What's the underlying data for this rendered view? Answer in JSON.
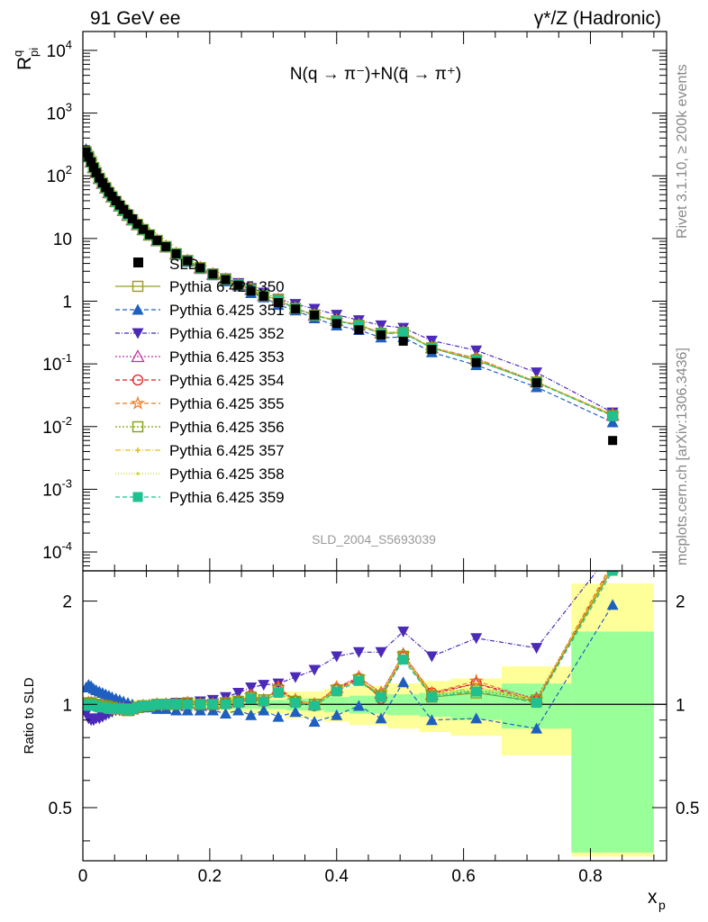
{
  "header": {
    "left": "91 GeV ee",
    "right": "γ*/Z (Hadronic)",
    "side_top": "Rivet 3.1.10, ≥ 200k events",
    "side_bottom": "mcplots.cern.ch [arXiv:1306.3436]",
    "analysis": "SLD_2004_S5693039"
  },
  "chart_data": [
    {
      "type": "scatter",
      "title": "N(q → π⁻)+N(q̄ → π⁺)",
      "ylabel_main": "R",
      "ylabel_sup": "q",
      "ylabel_sub": "pi",
      "xlim": [
        0,
        0.92
      ],
      "ylim": [
        5e-05,
        20000
      ],
      "log_y": true,
      "ytick_labels": [
        "10^-4",
        "10^-3",
        "10^-2",
        "10^-1",
        "1",
        "10",
        "10^2",
        "10^3",
        "10^4"
      ],
      "x": [
        0.005,
        0.009,
        0.013,
        0.017,
        0.021,
        0.026,
        0.031,
        0.036,
        0.041,
        0.046,
        0.052,
        0.058,
        0.064,
        0.071,
        0.078,
        0.086,
        0.095,
        0.105,
        0.117,
        0.131,
        0.147,
        0.165,
        0.185,
        0.205,
        0.225,
        0.245,
        0.265,
        0.285,
        0.308,
        0.335,
        0.365,
        0.4,
        0.435,
        0.47,
        0.505,
        0.55,
        0.62,
        0.715,
        0.835
      ],
      "reference": {
        "name": "SLD",
        "values": [
          240,
          200,
          165,
          135,
          112,
          92,
          77,
          65,
          55,
          47,
          40,
          34,
          29,
          24.5,
          20.5,
          17,
          14,
          11.5,
          9.3,
          7.4,
          5.7,
          4.4,
          3.4,
          2.7,
          2.2,
          1.8,
          1.45,
          1.2,
          0.95,
          0.75,
          0.6,
          0.44,
          0.35,
          0.29,
          0.23,
          0.17,
          0.105,
          0.05,
          0.006
        ]
      },
      "series": [
        {
          "name": "Pythia 6.425 350",
          "color": "#9a9a2a",
          "marker": "open-square",
          "dash": "",
          "ratio": [
            1.0,
            1.01,
            1.01,
            1.0,
            1.0,
            0.99,
            0.99,
            0.99,
            0.98,
            0.98,
            0.97,
            0.97,
            0.97,
            0.96,
            0.97,
            0.98,
            0.99,
            0.99,
            1.0,
            1.0,
            1.0,
            1.01,
            1.0,
            1.0,
            1.01,
            1.02,
            1.05,
            1.03,
            1.1,
            1.02,
            1.0,
            1.1,
            1.18,
            1.06,
            1.38,
            1.05,
            1.08,
            1.02,
            2.5
          ]
        },
        {
          "name": "Pythia 6.425 351",
          "color": "#1f5fc0",
          "marker": "triangle-up",
          "dash": "5,3",
          "ratio": [
            1.12,
            1.14,
            1.13,
            1.11,
            1.1,
            1.09,
            1.08,
            1.07,
            1.06,
            1.05,
            1.04,
            1.03,
            1.02,
            1.01,
            1.0,
            0.99,
            0.98,
            0.98,
            0.97,
            0.97,
            0.96,
            0.96,
            0.96,
            0.96,
            0.94,
            0.96,
            0.93,
            0.96,
            0.92,
            0.95,
            0.89,
            0.93,
            0.99,
            0.91,
            1.16,
            0.9,
            0.91,
            0.85,
            1.95
          ]
        },
        {
          "name": "Pythia 6.425 352",
          "color": "#4b2ab8",
          "marker": "triangle-down",
          "dash": "5,2,1,2",
          "ratio": [
            0.94,
            0.91,
            0.9,
            0.9,
            0.91,
            0.91,
            0.92,
            0.93,
            0.94,
            0.95,
            0.96,
            0.96,
            0.97,
            0.98,
            0.98,
            0.98,
            0.99,
            0.99,
            1.0,
            1.0,
            1.01,
            1.01,
            1.02,
            1.03,
            1.05,
            1.08,
            1.12,
            1.14,
            1.15,
            1.2,
            1.26,
            1.38,
            1.42,
            1.42,
            1.63,
            1.38,
            1.56,
            1.46,
            2.8
          ]
        },
        {
          "name": "Pythia 6.425 353",
          "color": "#c0309a",
          "marker": "open-triangle",
          "dash": "2,2",
          "ratio": [
            1.0,
            1.01,
            1.01,
            1.0,
            1.0,
            0.99,
            0.99,
            0.99,
            0.98,
            0.98,
            0.97,
            0.97,
            0.97,
            0.96,
            0.97,
            0.98,
            0.99,
            0.99,
            1.0,
            1.0,
            1.0,
            1.01,
            1.0,
            1.0,
            1.01,
            1.02,
            1.06,
            1.03,
            1.11,
            1.03,
            1.0,
            1.12,
            1.2,
            1.08,
            1.4,
            1.07,
            1.15,
            1.04,
            2.55
          ]
        },
        {
          "name": "Pythia 6.425 354",
          "color": "#e02020",
          "marker": "open-circle",
          "dash": "5,3",
          "ratio": [
            1.0,
            1.01,
            1.01,
            1.0,
            1.0,
            0.99,
            0.99,
            0.99,
            0.98,
            0.98,
            0.97,
            0.97,
            0.97,
            0.96,
            0.97,
            0.98,
            0.99,
            0.99,
            1.0,
            1.0,
            1.0,
            1.01,
            1.0,
            1.0,
            1.01,
            1.02,
            1.06,
            1.02,
            1.12,
            1.02,
            0.99,
            1.11,
            1.19,
            1.04,
            1.37,
            1.08,
            1.15,
            1.02,
            2.55
          ]
        },
        {
          "name": "Pythia 6.425 355",
          "color": "#f07820",
          "marker": "open-star",
          "dash": "5,3",
          "ratio": [
            1.0,
            1.01,
            1.01,
            1.0,
            1.0,
            0.99,
            0.99,
            0.99,
            0.98,
            0.98,
            0.97,
            0.97,
            0.97,
            0.96,
            0.97,
            0.98,
            0.99,
            0.99,
            1.0,
            1.0,
            1.0,
            1.01,
            1.0,
            1.0,
            1.01,
            1.02,
            1.06,
            1.03,
            1.12,
            1.03,
            1.0,
            1.12,
            1.2,
            1.08,
            1.4,
            1.08,
            1.17,
            1.03,
            2.6
          ]
        },
        {
          "name": "Pythia 6.425 356",
          "color": "#80a010",
          "marker": "open-square",
          "dash": "2,2",
          "ratio": [
            1.0,
            1.01,
            1.01,
            1.0,
            1.0,
            0.99,
            0.99,
            0.99,
            0.98,
            0.98,
            0.97,
            0.97,
            0.97,
            0.96,
            0.97,
            0.98,
            0.99,
            0.99,
            1.0,
            1.0,
            1.0,
            1.01,
            1.0,
            1.0,
            1.01,
            1.02,
            1.05,
            1.03,
            1.1,
            1.02,
            1.0,
            1.1,
            1.18,
            1.06,
            1.38,
            1.06,
            1.1,
            1.03,
            2.5
          ]
        },
        {
          "name": "Pythia 6.425 357",
          "color": "#e0c020",
          "marker": "small-cross",
          "dash": "6,2,1,2",
          "ratio": [
            1.0,
            1.01,
            1.01,
            1.0,
            1.0,
            0.99,
            0.99,
            0.99,
            0.98,
            0.98,
            0.97,
            0.97,
            0.97,
            0.96,
            0.97,
            0.98,
            0.99,
            0.99,
            1.0,
            1.0,
            1.0,
            1.01,
            1.0,
            1.0,
            1.01,
            1.02,
            1.05,
            1.03,
            1.1,
            1.02,
            1.0,
            1.1,
            1.18,
            1.07,
            1.38,
            1.07,
            1.12,
            1.03,
            2.55
          ]
        },
        {
          "name": "Pythia 6.425 358",
          "color": "#c8d020",
          "marker": "small-dot",
          "dash": "1,2",
          "ratio": [
            1.0,
            1.01,
            1.01,
            1.0,
            1.0,
            0.99,
            0.99,
            0.99,
            0.98,
            0.98,
            0.97,
            0.97,
            0.97,
            0.96,
            0.97,
            0.98,
            0.99,
            0.99,
            1.0,
            1.0,
            1.0,
            1.01,
            1.0,
            1.0,
            1.01,
            1.02,
            1.05,
            1.03,
            1.1,
            1.02,
            1.0,
            1.1,
            1.18,
            1.07,
            1.38,
            1.07,
            1.12,
            1.03,
            2.55
          ]
        },
        {
          "name": "Pythia 6.425 359",
          "color": "#20c090",
          "marker": "filled-square",
          "dash": "5,3",
          "ratio": [
            0.99,
            1.0,
            1.0,
            0.99,
            0.99,
            0.98,
            0.98,
            0.98,
            0.97,
            0.97,
            0.97,
            0.97,
            0.97,
            0.96,
            0.97,
            0.98,
            0.99,
            0.99,
            1.0,
            1.0,
            1.0,
            1.0,
            1.0,
            1.0,
            1.0,
            1.01,
            1.04,
            1.02,
            1.08,
            1.01,
            0.99,
            1.09,
            1.17,
            1.05,
            1.35,
            1.05,
            1.09,
            1.01,
            2.45
          ]
        }
      ]
    },
    {
      "type": "scatter",
      "ylabel": "Ratio to SLD",
      "xlabel_main": "x",
      "xlabel_sub": "p",
      "xlim": [
        0,
        0.92
      ],
      "ylim": [
        0.35,
        2.45
      ],
      "log_y": true,
      "ytick_labels": [
        "0.5",
        "1",
        "2"
      ],
      "xtick_labels": [
        "0",
        "0.2",
        "0.4",
        "0.6",
        "0.8"
      ],
      "uncertainty_bands": [
        {
          "x0": 0.07,
          "x1": 0.12,
          "stat": 0.02,
          "tot": 0.03
        },
        {
          "x0": 0.12,
          "x1": 0.22,
          "stat": 0.02,
          "tot": 0.04
        },
        {
          "x0": 0.22,
          "x1": 0.32,
          "stat": 0.03,
          "tot": 0.06
        },
        {
          "x0": 0.32,
          "x1": 0.38,
          "stat": 0.04,
          "tot": 0.09
        },
        {
          "x0": 0.38,
          "x1": 0.42,
          "stat": 0.05,
          "tot": 0.11
        },
        {
          "x0": 0.42,
          "x1": 0.48,
          "stat": 0.06,
          "tot": 0.13
        },
        {
          "x0": 0.48,
          "x1": 0.53,
          "stat": 0.07,
          "tot": 0.15
        },
        {
          "x0": 0.53,
          "x1": 0.58,
          "stat": 0.08,
          "tot": 0.17
        },
        {
          "x0": 0.58,
          "x1": 0.66,
          "stat": 0.1,
          "tot": 0.19
        },
        {
          "x0": 0.66,
          "x1": 0.77,
          "stat": 0.15,
          "tot": 0.29
        },
        {
          "x0": 0.77,
          "x1": 0.9,
          "stat": 0.63,
          "tot": 1.25
        }
      ]
    }
  ]
}
